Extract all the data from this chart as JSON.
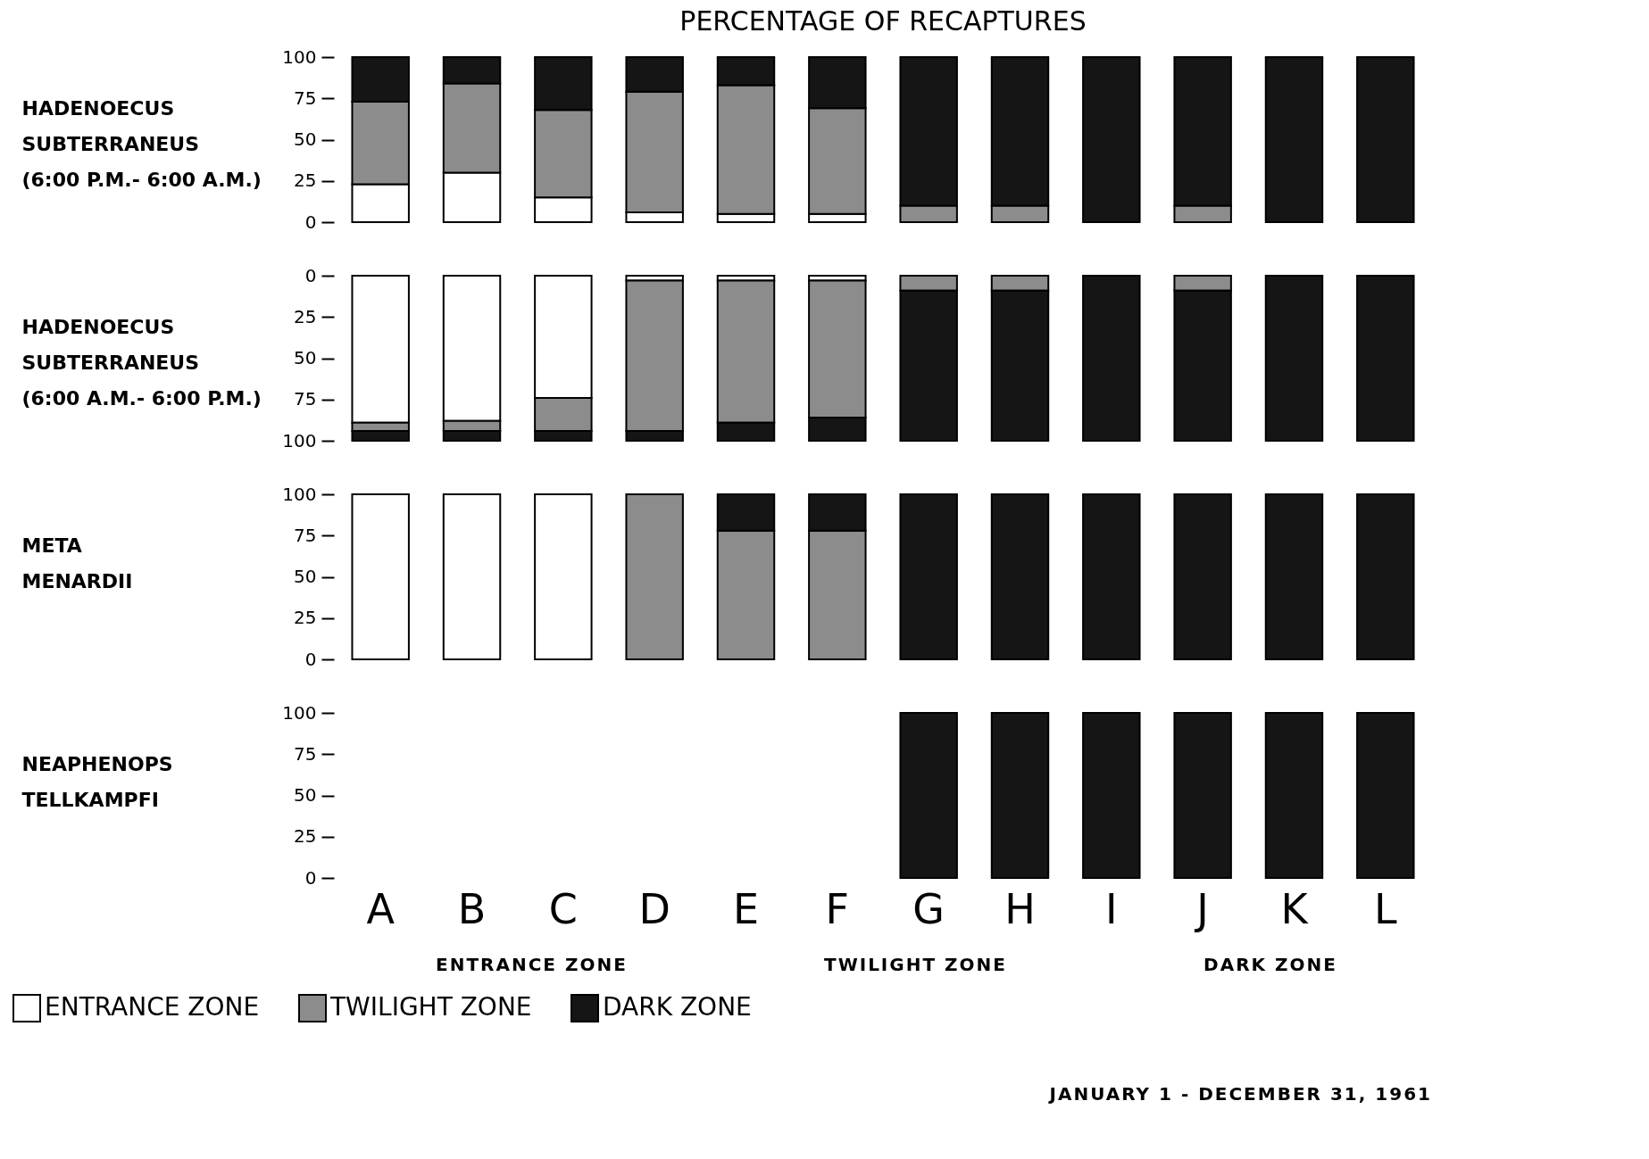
{
  "chart_data": [
    {
      "type": "bar",
      "title": "PERCENTAGE OF RECAPTURES",
      "ylabel": "HADENOECUS\nSUBTERRANEUS\n(6:00 P.M.- 6:00 A.M.)",
      "categories": [
        null,
        null,
        null,
        null,
        null,
        null,
        null,
        null,
        null,
        null,
        null,
        null
      ],
      "stacked": true,
      "ylim": [
        0,
        100
      ],
      "yticks": [
        0,
        25,
        50,
        75,
        100
      ],
      "tick_labels": "y",
      "series": [
        {
          "color": "#ffffff",
          "values": [
            23,
            30,
            15,
            6,
            5,
            5,
            null,
            null,
            null,
            null,
            null,
            null
          ]
        },
        {
          "color": "#8c8c8c",
          "values": [
            50,
            54,
            53,
            73,
            78,
            64,
            10,
            10,
            null,
            10,
            null,
            null
          ]
        },
        {
          "color": "#151515",
          "values": [
            27,
            16,
            32,
            21,
            17,
            31,
            90,
            90,
            100,
            90,
            100,
            100
          ]
        }
      ]
    },
    {
      "type": "bar",
      "ylabel": "HADENOECUS\nSUBTERRANEUS\n(6:00 A.M.- 6:00 P.M.)",
      "categories": [
        null,
        null,
        null,
        null,
        null,
        null,
        null,
        null,
        null,
        null,
        null,
        null
      ],
      "stacked": true,
      "ylim": [
        100,
        0
      ],
      "yticks": [
        0,
        25,
        50,
        75,
        100
      ],
      "tick_labels": "y",
      "series": [
        {
          "color": "#ffffff",
          "values": [
            89,
            88,
            74,
            3,
            3,
            3,
            null,
            null,
            null,
            null,
            null,
            null
          ]
        },
        {
          "color": "#8c8c8c",
          "values": [
            5,
            6,
            20,
            91,
            86,
            83,
            9,
            9,
            null,
            9,
            null,
            null
          ]
        },
        {
          "color": "#151515",
          "values": [
            6,
            6,
            6,
            6,
            11,
            14,
            91,
            91,
            100,
            91,
            100,
            100
          ]
        }
      ]
    },
    {
      "type": "bar",
      "ylabel": "META\nMENARDII",
      "categories": [
        null,
        null,
        null,
        null,
        null,
        null,
        null,
        null,
        null,
        null,
        null,
        null
      ],
      "stacked": true,
      "ylim": [
        0,
        100
      ],
      "yticks": [
        0,
        25,
        50,
        75,
        100
      ],
      "tick_labels": "y",
      "series": [
        {
          "color": "#ffffff",
          "values": [
            100,
            100,
            100,
            null,
            null,
            null,
            null,
            null,
            null,
            null,
            null,
            null
          ]
        },
        {
          "color": "#8c8c8c",
          "values": [
            null,
            null,
            null,
            100,
            78,
            78,
            null,
            null,
            null,
            null,
            null,
            null
          ]
        },
        {
          "color": "#151515",
          "values": [
            null,
            null,
            null,
            null,
            22,
            22,
            100,
            100,
            100,
            100,
            100,
            100
          ]
        }
      ]
    },
    {
      "type": "bar",
      "ylabel": "NEAPHENOPS\nTELLKAMPFI",
      "categories": [
        "A",
        "B",
        "C",
        "D",
        "E",
        "F",
        "G",
        "H",
        "I",
        "J",
        "K",
        "L"
      ],
      "stacked": true,
      "ylim": [
        0,
        100
      ],
      "yticks": [
        0,
        25,
        50,
        75,
        100
      ],
      "legend": "bottom left",
      "annotations": [
        "ENTRANCE ZONE",
        "TWILIGHT ZONE",
        "DARK ZONE",
        "JANUARY 1 - DECEMBER 31, 1961"
      ],
      "series": [
        {
          "name": "ENTRANCE ZONE",
          "color": "#ffffff",
          "values": [
            null,
            null,
            null,
            null,
            null,
            null,
            null,
            null,
            null,
            null,
            null,
            null
          ]
        },
        {
          "name": "TWILIGHT ZONE",
          "color": "#8c8c8c",
          "values": [
            null,
            null,
            null,
            null,
            null,
            null,
            null,
            null,
            null,
            null,
            null,
            null
          ]
        },
        {
          "name": "DARK ZONE",
          "color": "#151515",
          "values": [
            null,
            null,
            null,
            null,
            null,
            null,
            100,
            100,
            100,
            100,
            100,
            100
          ]
        }
      ]
    }
  ]
}
